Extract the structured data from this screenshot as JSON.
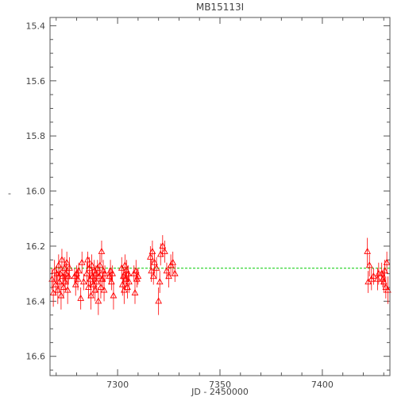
{
  "chart_data": {
    "type": "scatter",
    "title": "MB15113I",
    "xlabel": "JD - 2450000",
    "ylabel": "-",
    "xlim": [
      7267,
      7433
    ],
    "ylim": [
      16.67,
      15.37
    ],
    "y_inverted": true,
    "x_ticks": [
      7300,
      7350,
      7400
    ],
    "y_ticks": [
      15.4,
      15.6,
      15.8,
      16.0,
      16.2,
      16.4,
      16.6
    ],
    "grid": false,
    "marker": "open-triangle",
    "colors": {
      "points": "#ff0000",
      "fit": "#00cc00",
      "axes": "#555555"
    },
    "fit_line": {
      "style": "dashed",
      "y": 16.28,
      "x": [
        7267,
        7433
      ]
    },
    "series": [
      {
        "values": [
          {
            "x": 7268.0,
            "y": 16.32,
            "e": 0.04
          },
          {
            "x": 7268.6,
            "y": 16.37,
            "e": 0.05
          },
          {
            "x": 7269.2,
            "y": 16.29,
            "e": 0.04
          },
          {
            "x": 7269.8,
            "y": 16.34,
            "e": 0.04
          },
          {
            "x": 7270.3,
            "y": 16.3,
            "e": 0.03
          },
          {
            "x": 7270.8,
            "y": 16.36,
            "e": 0.05
          },
          {
            "x": 7271.2,
            "y": 16.27,
            "e": 0.04
          },
          {
            "x": 7271.6,
            "y": 16.33,
            "e": 0.04
          },
          {
            "x": 7272.0,
            "y": 16.3,
            "e": 0.03
          },
          {
            "x": 7272.4,
            "y": 16.38,
            "e": 0.05
          },
          {
            "x": 7272.8,
            "y": 16.25,
            "e": 0.04
          },
          {
            "x": 7273.2,
            "y": 16.31,
            "e": 0.03
          },
          {
            "x": 7273.6,
            "y": 16.35,
            "e": 0.04
          },
          {
            "x": 7274.0,
            "y": 16.28,
            "e": 0.04
          },
          {
            "x": 7274.4,
            "y": 16.33,
            "e": 0.03
          },
          {
            "x": 7274.8,
            "y": 16.3,
            "e": 0.04
          },
          {
            "x": 7275.2,
            "y": 16.26,
            "e": 0.04
          },
          {
            "x": 7275.6,
            "y": 16.36,
            "e": 0.05
          },
          {
            "x": 7276.0,
            "y": 16.31,
            "e": 0.03
          },
          {
            "x": 7276.5,
            "y": 16.28,
            "e": 0.04
          },
          {
            "x": 7279.0,
            "y": 16.31,
            "e": 0.03
          },
          {
            "x": 7279.5,
            "y": 16.34,
            "e": 0.04
          },
          {
            "x": 7280.0,
            "y": 16.3,
            "e": 0.03
          },
          {
            "x": 7280.6,
            "y": 16.32,
            "e": 0.04
          },
          {
            "x": 7281.0,
            "y": 16.29,
            "e": 0.03
          },
          {
            "x": 7282.0,
            "y": 16.39,
            "e": 0.04
          },
          {
            "x": 7282.6,
            "y": 16.26,
            "e": 0.04
          },
          {
            "x": 7283.4,
            "y": 16.33,
            "e": 0.03
          },
          {
            "x": 7285.0,
            "y": 16.3,
            "e": 0.04
          },
          {
            "x": 7285.4,
            "y": 16.25,
            "e": 0.03
          },
          {
            "x": 7285.8,
            "y": 16.35,
            "e": 0.04
          },
          {
            "x": 7286.2,
            "y": 16.28,
            "e": 0.04
          },
          {
            "x": 7286.6,
            "y": 16.32,
            "e": 0.03
          },
          {
            "x": 7287.0,
            "y": 16.38,
            "e": 0.05
          },
          {
            "x": 7287.4,
            "y": 16.27,
            "e": 0.04
          },
          {
            "x": 7287.8,
            "y": 16.31,
            "e": 0.03
          },
          {
            "x": 7288.2,
            "y": 16.34,
            "e": 0.04
          },
          {
            "x": 7288.6,
            "y": 16.29,
            "e": 0.04
          },
          {
            "x": 7289.0,
            "y": 16.36,
            "e": 0.04
          },
          {
            "x": 7289.4,
            "y": 16.3,
            "e": 0.03
          },
          {
            "x": 7289.8,
            "y": 16.33,
            "e": 0.04
          },
          {
            "x": 7290.2,
            "y": 16.28,
            "e": 0.03
          },
          {
            "x": 7290.6,
            "y": 16.4,
            "e": 0.05
          },
          {
            "x": 7291.0,
            "y": 16.31,
            "e": 0.03
          },
          {
            "x": 7291.4,
            "y": 16.27,
            "e": 0.04
          },
          {
            "x": 7291.8,
            "y": 16.35,
            "e": 0.04
          },
          {
            "x": 7292.2,
            "y": 16.22,
            "e": 0.04
          },
          {
            "x": 7292.6,
            "y": 16.32,
            "e": 0.03
          },
          {
            "x": 7293.0,
            "y": 16.29,
            "e": 0.04
          },
          {
            "x": 7293.4,
            "y": 16.36,
            "e": 0.04
          },
          {
            "x": 7293.8,
            "y": 16.3,
            "e": 0.03
          },
          {
            "x": 7296.0,
            "y": 16.31,
            "e": 0.03
          },
          {
            "x": 7296.5,
            "y": 16.29,
            "e": 0.04
          },
          {
            "x": 7297.0,
            "y": 16.33,
            "e": 0.03
          },
          {
            "x": 7297.5,
            "y": 16.3,
            "e": 0.03
          },
          {
            "x": 7298.0,
            "y": 16.38,
            "e": 0.05
          },
          {
            "x": 7302.0,
            "y": 16.28,
            "e": 0.04
          },
          {
            "x": 7302.4,
            "y": 16.34,
            "e": 0.04
          },
          {
            "x": 7302.8,
            "y": 16.31,
            "e": 0.03
          },
          {
            "x": 7303.2,
            "y": 16.36,
            "e": 0.05
          },
          {
            "x": 7303.6,
            "y": 16.27,
            "e": 0.04
          },
          {
            "x": 7304.0,
            "y": 16.32,
            "e": 0.03
          },
          {
            "x": 7304.4,
            "y": 16.29,
            "e": 0.04
          },
          {
            "x": 7304.8,
            "y": 16.35,
            "e": 0.04
          },
          {
            "x": 7305.2,
            "y": 16.3,
            "e": 0.03
          },
          {
            "x": 7305.6,
            "y": 16.33,
            "e": 0.04
          },
          {
            "x": 7308.0,
            "y": 16.3,
            "e": 0.03
          },
          {
            "x": 7308.5,
            "y": 16.37,
            "e": 0.04
          },
          {
            "x": 7309.0,
            "y": 16.29,
            "e": 0.04
          },
          {
            "x": 7309.5,
            "y": 16.32,
            "e": 0.03
          },
          {
            "x": 7310.0,
            "y": 16.31,
            "e": 0.03
          },
          {
            "x": 7316.0,
            "y": 16.24,
            "e": 0.04
          },
          {
            "x": 7316.5,
            "y": 16.29,
            "e": 0.04
          },
          {
            "x": 7317.0,
            "y": 16.22,
            "e": 0.04
          },
          {
            "x": 7317.5,
            "y": 16.31,
            "e": 0.03
          },
          {
            "x": 7318.0,
            "y": 16.26,
            "e": 0.04
          },
          {
            "x": 7319.0,
            "y": 16.28,
            "e": 0.04
          },
          {
            "x": 7320.0,
            "y": 16.4,
            "e": 0.05
          },
          {
            "x": 7320.6,
            "y": 16.33,
            "e": 0.04
          },
          {
            "x": 7321.0,
            "y": 16.23,
            "e": 0.04
          },
          {
            "x": 7322.0,
            "y": 16.2,
            "e": 0.04
          },
          {
            "x": 7323.0,
            "y": 16.22,
            "e": 0.04
          },
          {
            "x": 7324.0,
            "y": 16.29,
            "e": 0.03
          },
          {
            "x": 7325.0,
            "y": 16.31,
            "e": 0.04
          },
          {
            "x": 7326.0,
            "y": 16.27,
            "e": 0.04
          },
          {
            "x": 7327.0,
            "y": 16.26,
            "e": 0.04
          },
          {
            "x": 7328.0,
            "y": 16.3,
            "e": 0.03
          },
          {
            "x": 7422.0,
            "y": 16.22,
            "e": 0.05
          },
          {
            "x": 7422.4,
            "y": 16.33,
            "e": 0.04
          },
          {
            "x": 7423.0,
            "y": 16.27,
            "e": 0.04
          },
          {
            "x": 7424.0,
            "y": 16.32,
            "e": 0.04
          },
          {
            "x": 7425.0,
            "y": 16.31,
            "e": 0.03
          },
          {
            "x": 7427.0,
            "y": 16.32,
            "e": 0.04
          },
          {
            "x": 7427.5,
            "y": 16.3,
            "e": 0.04
          },
          {
            "x": 7429.0,
            "y": 16.3,
            "e": 0.04
          },
          {
            "x": 7429.5,
            "y": 16.32,
            "e": 0.03
          },
          {
            "x": 7430.0,
            "y": 16.33,
            "e": 0.04
          },
          {
            "x": 7430.5,
            "y": 16.29,
            "e": 0.04
          },
          {
            "x": 7431.0,
            "y": 16.35,
            "e": 0.04
          },
          {
            "x": 7431.5,
            "y": 16.26,
            "e": 0.04
          },
          {
            "x": 7432.0,
            "y": 16.36,
            "e": 0.05
          }
        ]
      }
    ]
  }
}
